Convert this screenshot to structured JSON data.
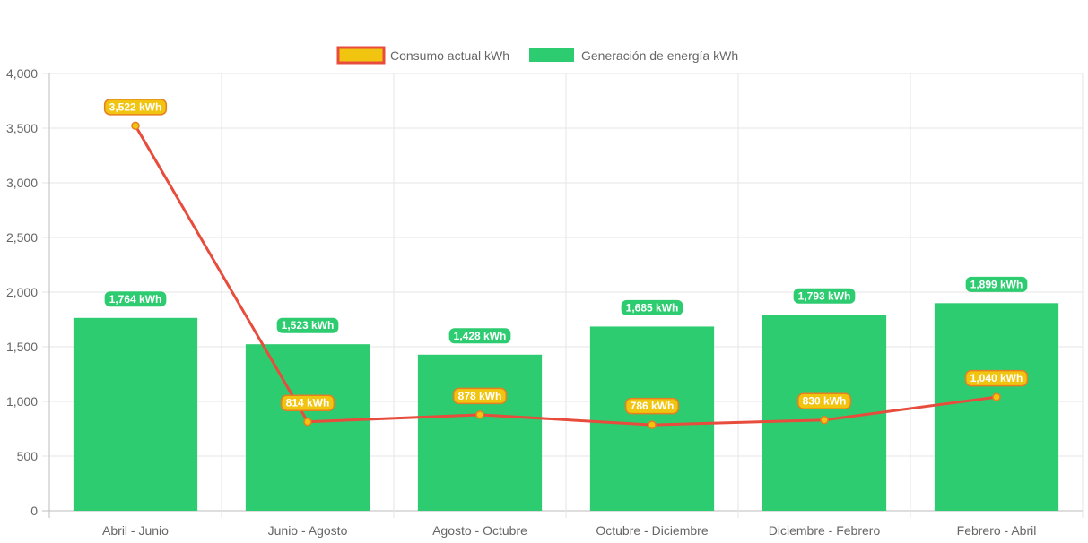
{
  "chart_data": {
    "type": "bar",
    "title": "",
    "xlabel": "",
    "ylabel": "",
    "ylim": [
      0,
      4000
    ],
    "yticks": [
      "0",
      "500",
      "1,000",
      "1,500",
      "2,000",
      "2,500",
      "3,000",
      "3,500",
      "4,000"
    ],
    "grid": true,
    "legend_position": "top-center",
    "categories": [
      "Abril - Junio",
      "Junio - Agosto",
      "Agosto - Octubre",
      "Octubre - Diciembre",
      "Diciembre - Febrero",
      "Febrero - Abril"
    ],
    "series": [
      {
        "name": "Consumo actual kWh",
        "type": "line",
        "color": "#e74c3c",
        "point_color": "#f1c40f",
        "label_bg": "#f1c40f",
        "label_border": "#e67e22",
        "values": [
          3522,
          814,
          878,
          786,
          830,
          1040
        ],
        "labels": [
          "3,522 kWh",
          "814 kWh",
          "878 kWh",
          "786 kWh",
          "830 kWh",
          "1,040 kWh"
        ]
      },
      {
        "name": "Generación de energía kWh",
        "type": "bar",
        "color": "#2ecc71",
        "label_bg": "#2ecc71",
        "values": [
          1764,
          1523,
          1428,
          1685,
          1793,
          1899
        ],
        "labels": [
          "1,764 kWh",
          "1,523 kWh",
          "1,428 kWh",
          "1,685 kWh",
          "1,793 kWh",
          "1,899 kWh"
        ]
      }
    ]
  }
}
